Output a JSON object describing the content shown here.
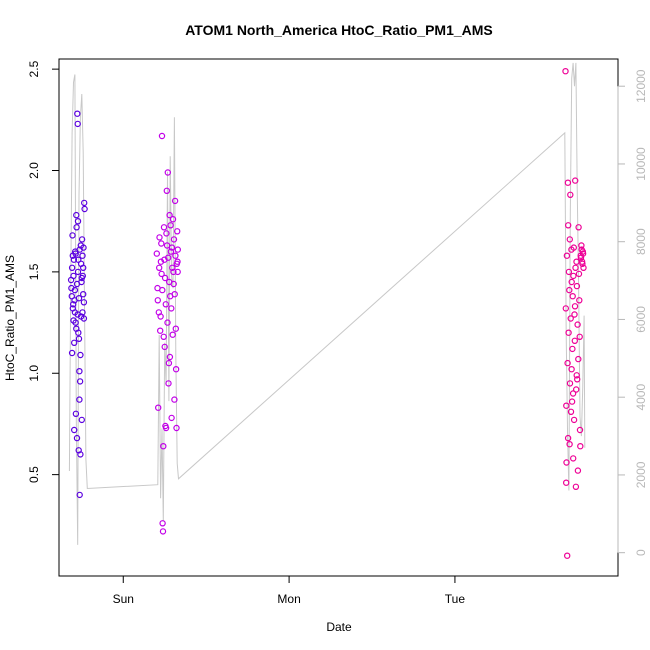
{
  "chart_data": {
    "type": "scatter",
    "title": "ATOM1 North_America HtoC_Ratio_PM1_AMS",
    "xlabel": "Date",
    "ylabel": "HtoC_Ratio_PM1_AMS",
    "x_ticks": [
      "Sun",
      "Mon",
      "Tue"
    ],
    "x_tick_values": [
      0,
      24,
      48
    ],
    "xlim": [
      -9.3,
      71.6
    ],
    "y_ticks": [
      "0.5",
      "1.0",
      "1.5",
      "2.0",
      "2.5"
    ],
    "y_tick_values": [
      0.5,
      1.0,
      1.5,
      2.0,
      2.5
    ],
    "ylim": [
      0.0,
      2.55
    ],
    "y2_ticks": [
      "0",
      "2000",
      "4000",
      "6000",
      "8000",
      "10000",
      "12000"
    ],
    "y2_tick_values": [
      0,
      2000,
      4000,
      6000,
      8000,
      10000,
      12000
    ],
    "y2lim": [
      -600,
      12700
    ],
    "grid": false,
    "colors": {
      "cluster1": "#5b00e0",
      "cluster2": "#c200e8",
      "cluster3": "#ee0096",
      "line": "#c8c8c8",
      "axis": "#000000",
      "right_axis": "#b8b8b8"
    },
    "series": [
      {
        "values": [
          [
            -7.55,
            1.46
          ],
          [
            -7.5,
            1.42
          ],
          [
            -7.45,
            1.38
          ],
          [
            -7.4,
            1.1
          ],
          [
            -7.35,
            1.68
          ],
          [
            -7.3,
            1.58
          ],
          [
            -7.25,
            1.34
          ],
          [
            -7.2,
            1.26
          ],
          [
            -7.15,
            1.56
          ],
          [
            -7.1,
            0.72
          ],
          [
            -7.05,
            1.36
          ],
          [
            -7.0,
            1.3
          ],
          [
            -6.95,
            1.6
          ],
          [
            -6.9,
            1.25
          ],
          [
            -6.85,
            0.8
          ],
          [
            -6.8,
            1.78
          ],
          [
            -6.75,
            1.72
          ],
          [
            -6.7,
            0.68
          ],
          [
            -6.65,
            2.28
          ],
          [
            -6.6,
            2.23
          ],
          [
            -6.55,
            1.5
          ],
          [
            -6.5,
            1.2
          ],
          [
            -6.45,
            0.62
          ],
          [
            -6.4,
            1.17
          ],
          [
            -6.35,
            0.87
          ],
          [
            -6.3,
            0.4
          ],
          [
            -6.25,
            0.96
          ],
          [
            -6.2,
            0.6
          ],
          [
            -6.15,
            1.63
          ],
          [
            -6.1,
            1.54
          ],
          [
            -6.05,
            1.45
          ],
          [
            -6.0,
            0.77
          ],
          [
            -5.95,
            1.66
          ],
          [
            -5.9,
            1.3
          ],
          [
            -5.85,
            1.48
          ],
          [
            -5.8,
            1.52
          ],
          [
            -5.75,
            1.62
          ],
          [
            -5.7,
            1.35
          ],
          [
            -5.65,
            1.84
          ],
          [
            -5.6,
            1.81
          ],
          [
            -7.4,
            1.52
          ],
          [
            -7.3,
            1.32
          ],
          [
            -7.2,
            1.48
          ],
          [
            -7.1,
            1.15
          ],
          [
            -7.0,
            1.41
          ],
          [
            -6.9,
            1.59
          ],
          [
            -6.8,
            1.22
          ],
          [
            -6.7,
            1.44
          ],
          [
            -6.6,
            1.29
          ],
          [
            -6.5,
            1.56
          ],
          [
            -6.4,
            1.37
          ],
          [
            -6.3,
            1.61
          ],
          [
            -6.2,
            1.09
          ],
          [
            -6.1,
            1.28
          ],
          [
            -6.0,
            1.47
          ],
          [
            -5.9,
            1.58
          ],
          [
            -5.8,
            1.39
          ],
          [
            -5.7,
            1.27
          ],
          [
            -6.55,
            1.75
          ],
          [
            -6.35,
            1.01
          ]
        ]
      },
      {
        "values": [
          [
            4.85,
            1.59
          ],
          [
            4.95,
            1.42
          ],
          [
            5.05,
            0.83
          ],
          [
            5.15,
            1.3
          ],
          [
            5.25,
            1.67
          ],
          [
            5.35,
            1.21
          ],
          [
            5.45,
            1.55
          ],
          [
            5.55,
            1.49
          ],
          [
            5.6,
            2.17
          ],
          [
            5.7,
            0.26
          ],
          [
            5.75,
            0.22
          ],
          [
            5.8,
            0.64
          ],
          [
            5.9,
            1.72
          ],
          [
            6.0,
            1.13
          ],
          [
            6.05,
            1.47
          ],
          [
            6.1,
            0.74
          ],
          [
            6.2,
            0.73
          ],
          [
            6.3,
            1.9
          ],
          [
            6.35,
            1.63
          ],
          [
            6.45,
            1.99
          ],
          [
            6.55,
            0.95
          ],
          [
            6.6,
            1.05
          ],
          [
            6.7,
            1.78
          ],
          [
            6.8,
            1.38
          ],
          [
            6.9,
            1.6
          ],
          [
            7.0,
            0.78
          ],
          [
            7.1,
            1.52
          ],
          [
            7.2,
            1.76
          ],
          [
            7.3,
            1.44
          ],
          [
            7.4,
            0.87
          ],
          [
            7.5,
            1.85
          ],
          [
            7.6,
            1.22
          ],
          [
            7.7,
            0.73
          ],
          [
            7.8,
            1.7
          ],
          [
            7.85,
            1.55
          ],
          [
            7.9,
            1.61
          ],
          [
            5.0,
            1.36
          ],
          [
            5.2,
            1.52
          ],
          [
            5.4,
            1.28
          ],
          [
            5.5,
            1.64
          ],
          [
            5.65,
            1.41
          ],
          [
            5.85,
            1.18
          ],
          [
            5.95,
            1.56
          ],
          [
            6.15,
            1.34
          ],
          [
            6.25,
            1.69
          ],
          [
            6.4,
            1.25
          ],
          [
            6.5,
            1.57
          ],
          [
            6.65,
            1.45
          ],
          [
            6.75,
            1.08
          ],
          [
            6.85,
            1.73
          ],
          [
            6.95,
            1.32
          ],
          [
            7.05,
            1.62
          ],
          [
            7.15,
            1.19
          ],
          [
            7.25,
            1.5
          ],
          [
            7.35,
            1.66
          ],
          [
            7.45,
            1.39
          ],
          [
            7.55,
            1.58
          ],
          [
            7.65,
            1.02
          ],
          [
            7.75,
            1.54
          ],
          [
            7.88,
            1.5
          ]
        ]
      },
      {
        "values": [
          [
            64.0,
            2.49
          ],
          [
            64.1,
            0.46
          ],
          [
            64.15,
            0.56
          ],
          [
            64.25,
            0.1
          ],
          [
            64.35,
            1.94
          ],
          [
            64.4,
            1.73
          ],
          [
            64.5,
            1.5
          ],
          [
            64.6,
            0.65
          ],
          [
            64.7,
            1.88
          ],
          [
            64.8,
            0.81
          ],
          [
            64.9,
            1.45
          ],
          [
            65.0,
            1.12
          ],
          [
            65.1,
            0.9
          ],
          [
            65.2,
            1.62
          ],
          [
            65.3,
            1.29
          ],
          [
            65.4,
            1.95
          ],
          [
            65.5,
            0.44
          ],
          [
            65.6,
            1.55
          ],
          [
            65.7,
            0.97
          ],
          [
            65.8,
            0.52
          ],
          [
            65.9,
            1.72
          ],
          [
            66.0,
            1.36
          ],
          [
            66.1,
            0.72
          ],
          [
            66.2,
            1.58
          ],
          [
            66.3,
            1.63
          ],
          [
            66.4,
            1.55
          ],
          [
            66.5,
            1.6
          ],
          [
            66.6,
            1.52
          ],
          [
            64.05,
            1.32
          ],
          [
            64.2,
            1.58
          ],
          [
            64.3,
            1.05
          ],
          [
            64.45,
            1.2
          ],
          [
            64.55,
            1.41
          ],
          [
            64.65,
            0.95
          ],
          [
            64.75,
            1.27
          ],
          [
            64.85,
            1.61
          ],
          [
            64.95,
            0.86
          ],
          [
            65.05,
            1.38
          ],
          [
            65.15,
            1.48
          ],
          [
            65.25,
            0.77
          ],
          [
            65.35,
            1.16
          ],
          [
            65.45,
            1.52
          ],
          [
            65.55,
            0.92
          ],
          [
            65.65,
            1.43
          ],
          [
            65.75,
            1.24
          ],
          [
            65.85,
            1.07
          ],
          [
            65.95,
            1.49
          ],
          [
            66.05,
            1.18
          ],
          [
            66.15,
            0.64
          ],
          [
            66.25,
            1.57
          ],
          [
            66.35,
            1.61
          ],
          [
            66.45,
            1.54
          ],
          [
            66.55,
            1.59
          ],
          [
            64.12,
            0.84
          ],
          [
            64.38,
            0.68
          ],
          [
            64.62,
            1.66
          ],
          [
            64.88,
            1.02
          ],
          [
            65.12,
            0.58
          ],
          [
            65.38,
            1.33
          ],
          [
            65.62,
            0.99
          ]
        ]
      },
      {
        "y_axis": "right",
        "values": [
          [
            -7.8,
            2100
          ],
          [
            -7.6,
            6800
          ],
          [
            -7.4,
            10800
          ],
          [
            -7.2,
            12100
          ],
          [
            -7.0,
            12300
          ],
          [
            -6.8,
            3400
          ],
          [
            -6.6,
            200
          ],
          [
            -6.4,
            9200
          ],
          [
            -6.2,
            11200
          ],
          [
            -6.0,
            11800
          ],
          [
            -5.8,
            10300
          ],
          [
            -5.6,
            6100
          ],
          [
            -5.4,
            2400
          ],
          [
            -5.2,
            1650
          ],
          [
            5.0,
            1750
          ],
          [
            5.2,
            5600
          ],
          [
            5.4,
            1400
          ],
          [
            5.6,
            3200
          ],
          [
            5.8,
            800
          ],
          [
            6.0,
            5400
          ],
          [
            6.2,
            4300
          ],
          [
            6.4,
            9800
          ],
          [
            6.6,
            3900
          ],
          [
            6.8,
            10200
          ],
          [
            7.0,
            7100
          ],
          [
            7.2,
            6800
          ],
          [
            7.4,
            11200
          ],
          [
            7.6,
            5100
          ],
          [
            7.8,
            2300
          ],
          [
            8.0,
            1900
          ],
          [
            63.9,
            10800
          ],
          [
            64.1,
            5600
          ],
          [
            64.3,
            3000
          ],
          [
            64.5,
            1600
          ],
          [
            64.7,
            8700
          ],
          [
            64.9,
            12200
          ],
          [
            65.1,
            12600
          ],
          [
            65.3,
            12000
          ],
          [
            65.5,
            12600
          ],
          [
            65.7,
            9400
          ],
          [
            65.9,
            6900
          ],
          [
            66.1,
            3500
          ],
          [
            66.3,
            3000
          ],
          [
            66.5,
            4300
          ],
          [
            66.7,
            6100
          ],
          [
            66.8,
            2700
          ]
        ]
      }
    ]
  }
}
